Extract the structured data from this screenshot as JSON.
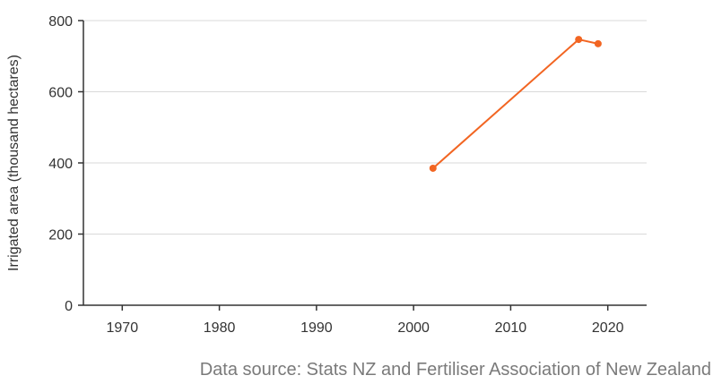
{
  "chart_data": {
    "type": "line",
    "title": "",
    "xlabel": "",
    "ylabel": "Irrigated area (thousand hectares)",
    "xlim": [
      1966,
      2024
    ],
    "ylim": [
      0,
      800
    ],
    "xticks": [
      1970,
      1980,
      1990,
      2000,
      2010,
      2020
    ],
    "yticks": [
      0,
      200,
      400,
      600,
      800
    ],
    "grid": "horizontal",
    "legend": "none",
    "series": [
      {
        "color": "#f26522",
        "x": [
          2002,
          2017,
          2019
        ],
        "y": [
          385,
          747,
          735
        ]
      }
    ]
  },
  "source_note": "Data source: Stats NZ and Fertiliser Association of New Zealand"
}
